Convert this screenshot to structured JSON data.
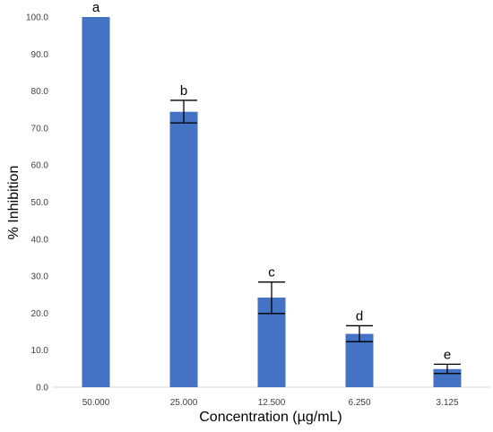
{
  "chart_data": {
    "type": "bar",
    "xlabel": "Concentration (µg/mL)",
    "ylabel": "% Inhibition",
    "ylim": [
      0,
      100
    ],
    "yticks": [
      "0.0",
      "10.0",
      "20.0",
      "30.0",
      "40.0",
      "50.0",
      "60.0",
      "70.0",
      "80.0",
      "90.0",
      "100.0"
    ],
    "categories": [
      "50.000",
      "25.000",
      "12.500",
      "6.250",
      "3.125"
    ],
    "values": [
      100.0,
      74.4,
      24.2,
      14.4,
      4.9
    ],
    "error_low": [
      null,
      71.4,
      19.9,
      12.3,
      3.7
    ],
    "error_high": [
      null,
      77.5,
      28.4,
      16.6,
      6.2
    ],
    "significance_letters": [
      "a",
      "b",
      "c",
      "d",
      "e"
    ],
    "bar_color": "#4472C4",
    "grid": false,
    "legend": "none"
  }
}
